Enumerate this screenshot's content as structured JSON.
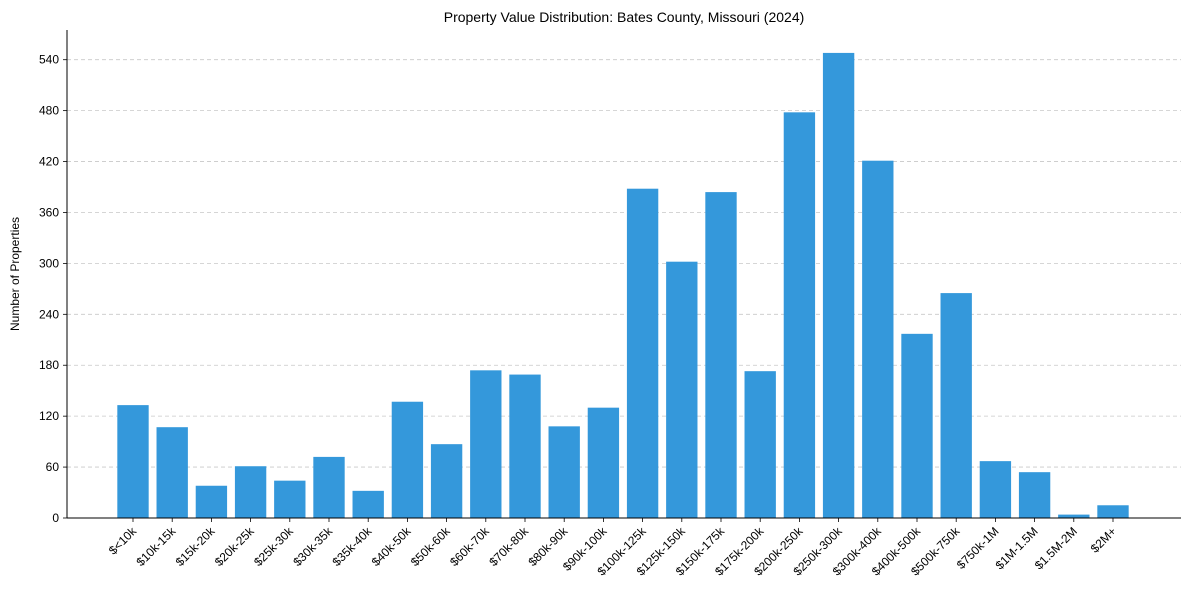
{
  "chart_data": {
    "type": "bar",
    "title": "Property Value Distribution: Bates County, Missouri (2024)",
    "xlabel": "",
    "ylabel": "Number of Properties",
    "ylim": [
      0,
      575
    ],
    "yticks": [
      0,
      60,
      120,
      180,
      240,
      300,
      360,
      420,
      480,
      540
    ],
    "grid": "y-dashed",
    "bar_color": "#3498db",
    "categories": [
      "$<10k",
      "$10k-15k",
      "$15k-20k",
      "$20k-25k",
      "$25k-30k",
      "$30k-35k",
      "$35k-40k",
      "$40k-50k",
      "$50k-60k",
      "$60k-70k",
      "$70k-80k",
      "$80k-90k",
      "$90k-100k",
      "$100k-125k",
      "$125k-150k",
      "$150k-175k",
      "$175k-200k",
      "$200k-250k",
      "$250k-300k",
      "$300k-400k",
      "$400k-500k",
      "$500k-750k",
      "$750k-1M",
      "$1M-1.5M",
      "$1.5M-2M",
      "$2M+"
    ],
    "values": [
      133,
      107,
      38,
      61,
      44,
      72,
      32,
      137,
      87,
      174,
      169,
      108,
      130,
      388,
      302,
      384,
      173,
      478,
      548,
      421,
      217,
      265,
      67,
      54,
      4,
      15
    ]
  }
}
